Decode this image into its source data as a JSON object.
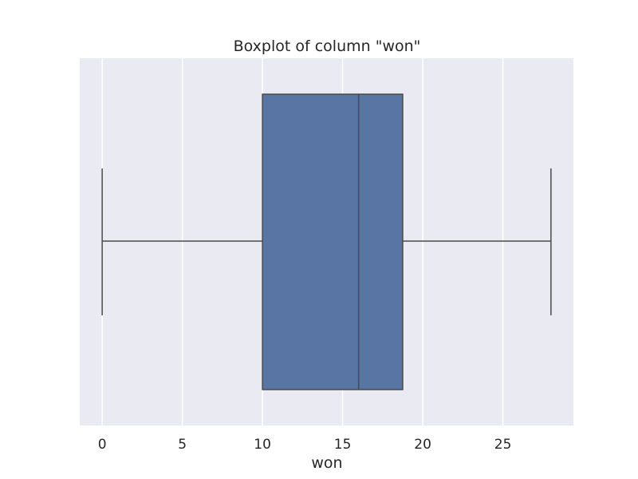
{
  "chart_data": {
    "type": "boxplot",
    "orientation": "horizontal",
    "title": "Boxplot of column \"won\"",
    "xlabel": "won",
    "ylabel": "",
    "xlim": [
      -1.4,
      29.4
    ],
    "xticks": [
      0,
      5,
      10,
      15,
      20,
      25
    ],
    "tick_labels": [
      "0",
      "5",
      "10",
      "15",
      "20",
      "25"
    ],
    "grid": true,
    "series": [
      {
        "column": "won",
        "whisker_low": 0,
        "q1": 10,
        "median": 16,
        "q3": 18.75,
        "whisker_high": 28
      }
    ],
    "colors": {
      "background": "#eaeaf2",
      "box_fill": "#5875a4",
      "line": "#4a4a4a",
      "grid": "#ffffff"
    }
  }
}
